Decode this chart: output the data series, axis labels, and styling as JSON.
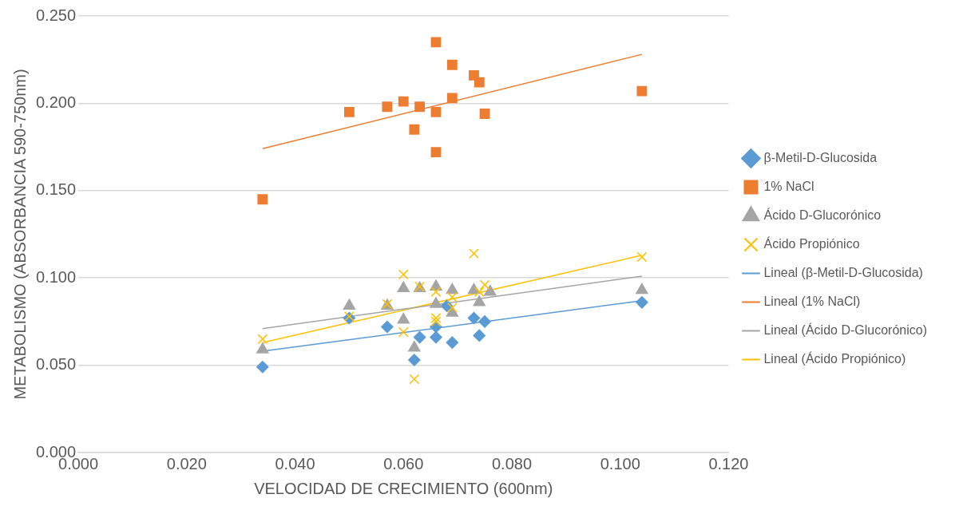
{
  "chart_data": {
    "type": "scatter",
    "xlabel": "VELOCIDAD DE CRECIMIENTO (600nm)",
    "ylabel": "METABOLISMO (ABSORBANCIA 590-750nm)",
    "xlim": [
      0,
      0.12
    ],
    "xticks": [
      {
        "value": 0,
        "label": "0.000"
      },
      {
        "value": 0.02,
        "label": "0.020"
      },
      {
        "value": 0.04,
        "label": "0.040"
      },
      {
        "value": 0.06,
        "label": "0.060"
      },
      {
        "value": 0.08,
        "label": "0.080"
      },
      {
        "value": 0.1,
        "label": "0.100"
      },
      {
        "value": 0.12,
        "label": "0.120"
      }
    ],
    "ylim": [
      0,
      0.25
    ],
    "yticks": [
      {
        "value": 0,
        "label": "0.000"
      },
      {
        "value": 0.05,
        "label": "0.050"
      },
      {
        "value": 0.1,
        "label": "0.100"
      },
      {
        "value": 0.15,
        "label": "0.150"
      },
      {
        "value": 0.2,
        "label": "0.200"
      },
      {
        "value": 0.25,
        "label": "0.250"
      }
    ],
    "grid": "y",
    "legend": "right",
    "series": [
      {
        "name": "β-Metil-D-Glucosida",
        "color": "#5b9bd5",
        "marker": "diamond",
        "x": [
          0.034,
          0.05,
          0.057,
          0.063,
          0.062,
          0.066,
          0.066,
          0.068,
          0.069,
          0.073,
          0.074,
          0.075,
          0.104
        ],
        "values": [
          0.049,
          0.077,
          0.072,
          0.066,
          0.053,
          0.066,
          0.072,
          0.084,
          0.063,
          0.077,
          0.067,
          0.075,
          0.086
        ]
      },
      {
        "name": "1% NaCl",
        "color": "#ed7d31",
        "marker": "square",
        "x": [
          0.034,
          0.05,
          0.057,
          0.06,
          0.063,
          0.066,
          0.062,
          0.066,
          0.066,
          0.069,
          0.069,
          0.073,
          0.074,
          0.075,
          0.104
        ],
        "values": [
          0.145,
          0.195,
          0.198,
          0.201,
          0.198,
          0.195,
          0.185,
          0.172,
          0.235,
          0.222,
          0.203,
          0.216,
          0.212,
          0.194,
          0.207
        ]
      },
      {
        "name": "Ácido D-Glucorónico",
        "color": "#a5a5a5",
        "marker": "triangle",
        "x": [
          0.034,
          0.05,
          0.057,
          0.06,
          0.06,
          0.063,
          0.062,
          0.066,
          0.066,
          0.069,
          0.069,
          0.073,
          0.074,
          0.076,
          0.104
        ],
        "values": [
          0.059,
          0.084,
          0.084,
          0.094,
          0.076,
          0.094,
          0.06,
          0.095,
          0.085,
          0.093,
          0.08,
          0.093,
          0.086,
          0.092,
          0.093
        ]
      },
      {
        "name": "Ácido Propiónico",
        "color": "#ffc000",
        "marker": "cross",
        "x": [
          0.034,
          0.05,
          0.057,
          0.06,
          0.06,
          0.063,
          0.062,
          0.066,
          0.066,
          0.066,
          0.069,
          0.069,
          0.073,
          0.074,
          0.075,
          0.104
        ],
        "values": [
          0.065,
          0.078,
          0.085,
          0.102,
          0.069,
          0.095,
          0.042,
          0.092,
          0.077,
          0.075,
          0.089,
          0.083,
          0.114,
          0.092,
          0.096,
          0.112
        ]
      },
      {
        "name": "Lineal (β-Metil-D-Glucosida)",
        "type": "line",
        "color": "#5b9bd5",
        "marker": "none",
        "x": [
          0.034,
          0.104
        ],
        "values": [
          0.058,
          0.087
        ]
      },
      {
        "name": "Lineal (1% NaCl)",
        "type": "line",
        "color": "#ed7d31",
        "marker": "none",
        "x": [
          0.034,
          0.104
        ],
        "values": [
          0.174,
          0.228
        ]
      },
      {
        "name": "Lineal (Ácido D-Glucorónico)",
        "type": "line",
        "color": "#a5a5a5",
        "marker": "none",
        "x": [
          0.034,
          0.104
        ],
        "values": [
          0.071,
          0.101
        ]
      },
      {
        "name": "Lineal (Ácido Propiónico)",
        "type": "line",
        "color": "#ffc000",
        "marker": "none",
        "x": [
          0.034,
          0.104
        ],
        "values": [
          0.063,
          0.113
        ]
      }
    ]
  }
}
